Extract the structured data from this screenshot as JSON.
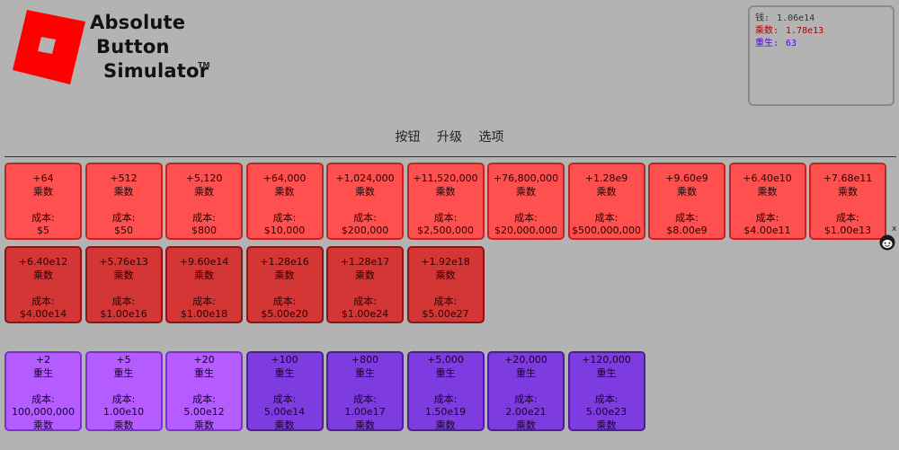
{
  "logo": {
    "line1": "Absolute",
    "line2": "Button",
    "line3": "Simulator",
    "tm": "TM",
    "color": "#ff0000"
  },
  "stats": [
    {
      "label": "钱:",
      "value": "1.06e14",
      "color": "#333333"
    },
    {
      "label": "乘数:",
      "value": "1.78e13",
      "color": "#b00000"
    },
    {
      "label": "重生:",
      "value": "63",
      "color": "#5a00e0"
    }
  ],
  "nav": {
    "tabs": [
      "按钮",
      "升级",
      "选项"
    ]
  },
  "close": "x",
  "multiplier_buttons": [
    {
      "gain": "+64",
      "type": "乘数",
      "cost_label": "成本:",
      "cost": "$5",
      "style": "red-light"
    },
    {
      "gain": "+512",
      "type": "乘数",
      "cost_label": "成本:",
      "cost": "$50",
      "style": "red-light"
    },
    {
      "gain": "+5,120",
      "type": "乘数",
      "cost_label": "成本:",
      "cost": "$800",
      "style": "red-light"
    },
    {
      "gain": "+64,000",
      "type": "乘数",
      "cost_label": "成本:",
      "cost": "$10,000",
      "style": "red-light"
    },
    {
      "gain": "+1,024,000",
      "type": "乘数",
      "cost_label": "成本:",
      "cost": "$200,000",
      "style": "red-light"
    },
    {
      "gain": "+11,520,000",
      "type": "乘数",
      "cost_label": "成本:",
      "cost": "$2,500,000",
      "style": "red-light"
    },
    {
      "gain": "+76,800,000",
      "type": "乘数",
      "cost_label": "成本:",
      "cost": "$20,000,000",
      "style": "red-light"
    },
    {
      "gain": "+1.28e9",
      "type": "乘数",
      "cost_label": "成本:",
      "cost": "$500,000,000",
      "style": "red-light"
    },
    {
      "gain": "+9.60e9",
      "type": "乘数",
      "cost_label": "成本:",
      "cost": "$8.00e9",
      "style": "red-light"
    },
    {
      "gain": "+6.40e10",
      "type": "乘数",
      "cost_label": "成本:",
      "cost": "$4.00e11",
      "style": "red-light"
    },
    {
      "gain": "+7.68e11",
      "type": "乘数",
      "cost_label": "成本:",
      "cost": "$1.00e13",
      "style": "red-light"
    },
    {
      "gain": "+6.40e12",
      "type": "乘数",
      "cost_label": "成本:",
      "cost": "$4.00e14",
      "style": "red-dark"
    },
    {
      "gain": "+5.76e13",
      "type": "乘数",
      "cost_label": "成本:",
      "cost": "$1.00e16",
      "style": "red-dark"
    },
    {
      "gain": "+9.60e14",
      "type": "乘数",
      "cost_label": "成本:",
      "cost": "$1.00e18",
      "style": "red-dark"
    },
    {
      "gain": "+1.28e16",
      "type": "乘数",
      "cost_label": "成本:",
      "cost": "$5.00e20",
      "style": "red-dark"
    },
    {
      "gain": "+1.28e17",
      "type": "乘数",
      "cost_label": "成本:",
      "cost": "$1.00e24",
      "style": "red-dark"
    },
    {
      "gain": "+1.92e18",
      "type": "乘数",
      "cost_label": "成本:",
      "cost": "$5.00e27",
      "style": "red-dark"
    }
  ],
  "rebirth_buttons": [
    {
      "gain": "+2",
      "type": "重生",
      "cost_label": "成本:",
      "cost": "100,000,000",
      "cost_unit": "乘数",
      "style": "purple-light"
    },
    {
      "gain": "+5",
      "type": "重生",
      "cost_label": "成本:",
      "cost": "1.00e10",
      "cost_unit": "乘数",
      "style": "purple-light"
    },
    {
      "gain": "+20",
      "type": "重生",
      "cost_label": "成本:",
      "cost": "5.00e12",
      "cost_unit": "乘数",
      "style": "purple-light"
    },
    {
      "gain": "+100",
      "type": "重生",
      "cost_label": "成本:",
      "cost": "5.00e14",
      "cost_unit": "乘数",
      "style": "purple-dark"
    },
    {
      "gain": "+800",
      "type": "重生",
      "cost_label": "成本:",
      "cost": "1.00e17",
      "cost_unit": "乘数",
      "style": "purple-dark"
    },
    {
      "gain": "+5,000",
      "type": "重生",
      "cost_label": "成本:",
      "cost": "1.50e19",
      "cost_unit": "乘数",
      "style": "purple-dark"
    },
    {
      "gain": "+20,000",
      "type": "重生",
      "cost_label": "成本:",
      "cost": "2.00e21",
      "cost_unit": "乘数",
      "style": "purple-dark"
    },
    {
      "gain": "+120,000",
      "type": "重生",
      "cost_label": "成本:",
      "cost": "5.00e23",
      "cost_unit": "乘数",
      "style": "purple-dark"
    }
  ]
}
